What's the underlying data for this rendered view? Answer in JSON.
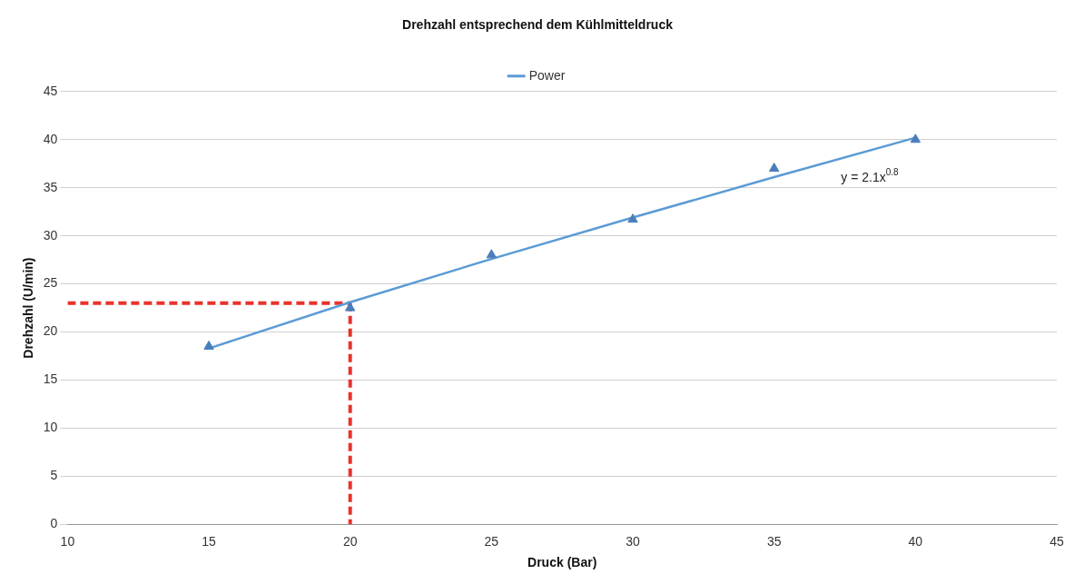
{
  "chart_data": {
    "type": "scatter",
    "title": "Drehzahl entsprechend dem Kühlmitteldruck",
    "xlabel": "Druck (Bar)",
    "ylabel": "Drehzahl (U/min)",
    "xlim": [
      10,
      45
    ],
    "xticks": [
      10,
      15,
      20,
      25,
      30,
      35,
      40,
      45
    ],
    "ylim": [
      0,
      45
    ],
    "yticks": [
      0,
      5,
      10,
      15,
      20,
      25,
      30,
      35,
      40,
      45
    ],
    "grid": "y",
    "legend": "top",
    "series": [
      {
        "type": "scatter",
        "marker": "triangle",
        "color": "#4a7ebb",
        "x": [
          15,
          20,
          25,
          30,
          35,
          40
        ],
        "values": [
          18.5,
          22.5,
          28,
          31.7,
          37,
          40
        ]
      },
      {
        "type": "line",
        "name": "Power",
        "marker": "none",
        "line_style": "solid",
        "color": "#5b9bd5",
        "x": [
          15,
          20,
          25,
          30,
          35,
          40
        ],
        "values": [
          18.3,
          23.1,
          27.6,
          31.9,
          36.1,
          40.2
        ]
      },
      {
        "type": "line",
        "marker": "none",
        "line_style": "dashed",
        "color": "#e8322b",
        "x": [
          10,
          20
        ],
        "values": [
          23,
          23
        ]
      },
      {
        "type": "line",
        "marker": "none",
        "line_style": "dashed",
        "color": "#e8322b",
        "x": [
          20,
          20
        ],
        "values": [
          23,
          0
        ]
      }
    ],
    "annotations": [
      {
        "text": "y = 2.1x$^{0.8}$",
        "x": 40,
        "y": 40.2
      }
    ]
  }
}
